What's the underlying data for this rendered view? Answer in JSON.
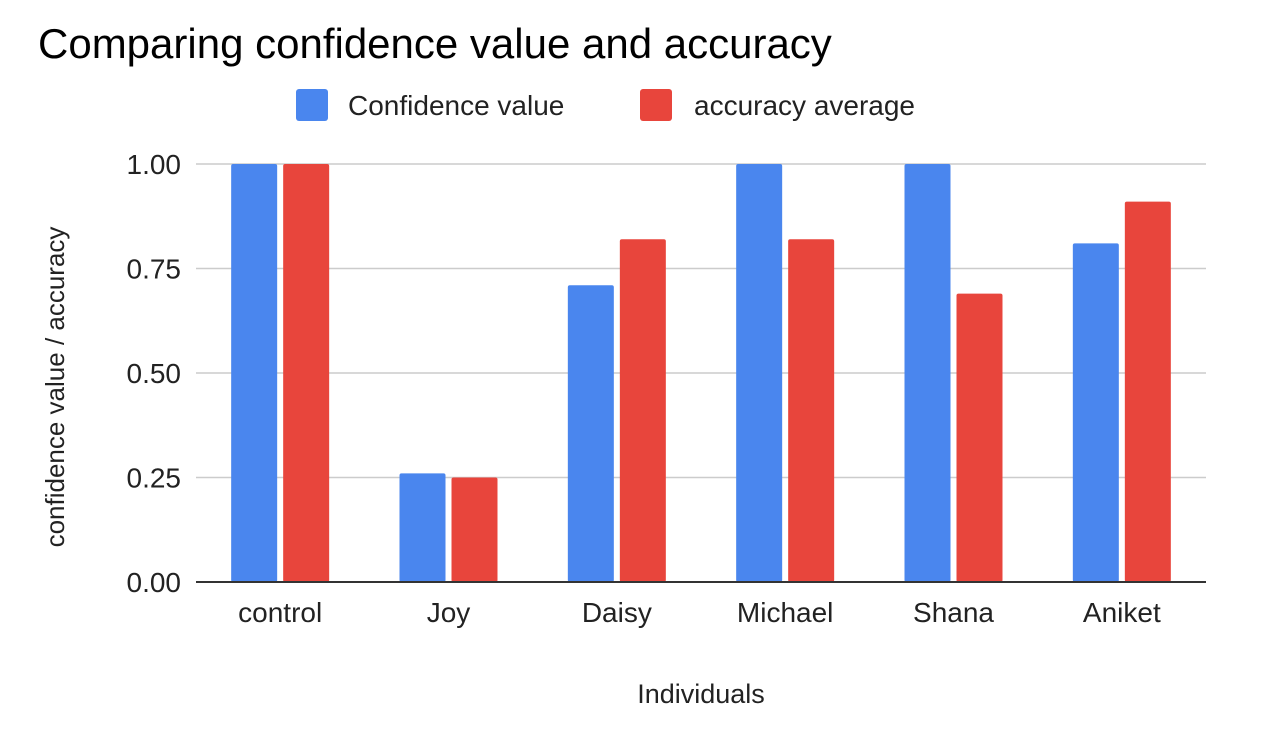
{
  "chart_data": {
    "type": "bar",
    "title": "Comparing confidence value and accuracy",
    "xlabel": "Individuals",
    "ylabel": "confidence value / accuracy",
    "categories": [
      "control",
      "Joy",
      "Daisy",
      "Michael",
      "Shana",
      "Aniket"
    ],
    "series": [
      {
        "name": "Confidence value",
        "color": "#4a86ee",
        "values": [
          1.0,
          0.26,
          0.71,
          1.0,
          1.0,
          0.81
        ]
      },
      {
        "name": "accuracy average",
        "color": "#e8453c",
        "values": [
          1.0,
          0.25,
          0.82,
          0.82,
          0.69,
          0.91
        ]
      }
    ],
    "ylim": [
      0,
      1
    ],
    "yticks": [
      "0.00",
      "0.25",
      "0.50",
      "0.75",
      "1.00"
    ],
    "grid": true,
    "legend_position": "top-center"
  }
}
